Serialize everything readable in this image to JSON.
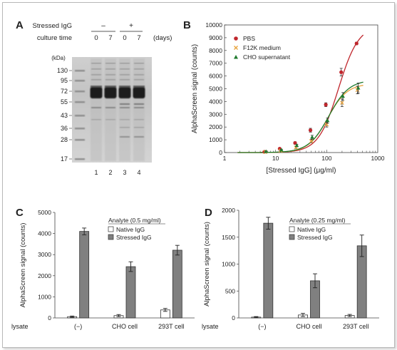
{
  "panel_letters": [
    "A",
    "B",
    "C",
    "D"
  ],
  "gel": {
    "row1_label": "Stressed IgG",
    "row2_label": "culture time",
    "days_label": "(days)",
    "stress_marks": [
      "–",
      "+"
    ],
    "culture_times": [
      "0",
      "7",
      "0",
      "7"
    ],
    "kda_label": "(kDa)",
    "markers": [
      "130",
      "95",
      "72",
      "55",
      "43",
      "36",
      "28",
      "17"
    ],
    "lanes": [
      "1",
      "2",
      "3",
      "4"
    ],
    "marker_kda": [
      130,
      95,
      72,
      55,
      43,
      36,
      28,
      17
    ]
  },
  "chart_data": [
    {
      "type": "scatter",
      "panel": "B",
      "xlabel": "[Stressed IgG] (μg/ml)",
      "ylabel": "AlphaScreen signal (counts)",
      "xscale": "log",
      "xlim": [
        1,
        1000
      ],
      "ylim": [
        0,
        10000
      ],
      "xticks": [
        "1",
        "10",
        "100",
        "1000"
      ],
      "yticks": [
        "0",
        "1000",
        "2000",
        "3000",
        "4000",
        "5000",
        "6000",
        "7000",
        "8000",
        "9000",
        "10000"
      ],
      "legend_position": "top-left",
      "x": [
        6.25,
        12.5,
        25,
        50,
        100,
        200,
        400
      ],
      "series": [
        {
          "name": "PBS",
          "color": "#c0272d",
          "marker": "circle",
          "values": [
            60,
            300,
            750,
            1750,
            3750,
            6300,
            8550
          ],
          "errors": [
            30,
            60,
            100,
            150,
            150,
            300,
            100
          ]
        },
        {
          "name": "F12K medium",
          "color": "#e8a33d",
          "marker": "x",
          "values": [
            40,
            150,
            400,
            900,
            2200,
            3900,
            4900
          ],
          "errors": [
            30,
            50,
            80,
            120,
            200,
            300,
            300
          ]
        },
        {
          "name": "CHO supernatant",
          "color": "#1f7a2e",
          "marker": "triangle",
          "values": [
            80,
            200,
            550,
            1200,
            2500,
            4400,
            5050
          ],
          "errors": [
            40,
            60,
            100,
            150,
            200,
            300,
            400
          ]
        }
      ]
    },
    {
      "type": "bar",
      "panel": "C",
      "ylabel": "AlphaScreen signal (counts)",
      "ylim": [
        0,
        5000
      ],
      "yticks": [
        "0",
        "1000",
        "2000",
        "3000",
        "4000",
        "5000"
      ],
      "x_row_label": "lysate",
      "categories": [
        "(−)",
        "CHO cell",
        "293T cell"
      ],
      "legend_title": "Analyte (0.5 mg/ml)",
      "legend_position": "top-right",
      "series": [
        {
          "name": "Native IgG",
          "color": "#ffffff",
          "values": [
            60,
            110,
            380
          ],
          "errors": [
            30,
            50,
            70
          ]
        },
        {
          "name": "Stressed IgG",
          "color": "#808080",
          "values": [
            4100,
            2430,
            3210
          ],
          "errors": [
            160,
            230,
            230
          ]
        }
      ]
    },
    {
      "type": "bar",
      "panel": "D",
      "ylabel": "AlphaScreen signal (counts)",
      "ylim": [
        0,
        2000
      ],
      "yticks": [
        "0",
        "500",
        "1000",
        "1500",
        "2000"
      ],
      "x_row_label": "lysate",
      "categories": [
        "(−)",
        "CHO cell",
        "293T cell"
      ],
      "legend_title": "Analyte (0.25 mg/ml)",
      "legend_position": "top-right",
      "series": [
        {
          "name": "Native IgG",
          "color": "#ffffff",
          "values": [
            15,
            55,
            45
          ],
          "errors": [
            10,
            30,
            20
          ]
        },
        {
          "name": "Stressed IgG",
          "color": "#808080",
          "values": [
            1760,
            690,
            1340
          ],
          "errors": [
            110,
            130,
            200
          ]
        }
      ]
    }
  ]
}
